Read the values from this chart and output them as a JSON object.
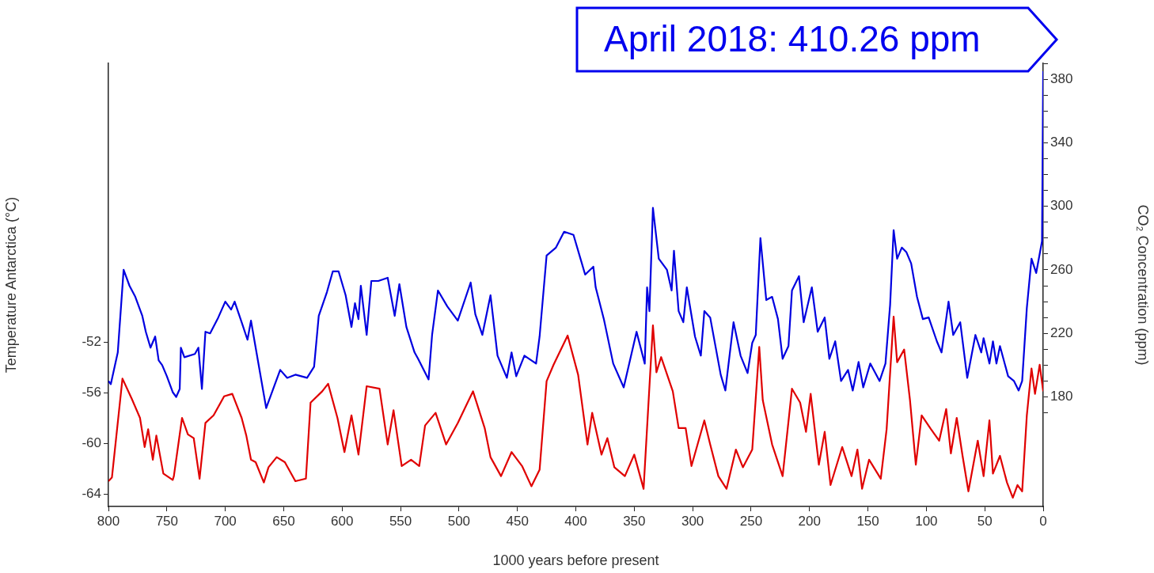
{
  "chart_data": {
    "type": "line",
    "xlabel": "1000 years before present",
    "ylabel": "Temperature Antarctica (°C)",
    "y2label": "CO₂ Concentration (ppm)",
    "annotations": [
      "April 2018: 410.26 ppm"
    ],
    "xlim": [
      800,
      0
    ],
    "xticks": [
      800,
      750,
      700,
      650,
      600,
      550,
      500,
      450,
      400,
      350,
      300,
      250,
      200,
      150,
      100,
      50,
      0
    ],
    "ylim": [
      -65,
      -30
    ],
    "yticks": [
      -64,
      -60,
      -56,
      -52
    ],
    "y2lim": [
      111,
      390
    ],
    "y2ticks": [
      {
        "value": 170,
        "label": null
      },
      180,
      {
        "value": 190,
        "label": null
      },
      {
        "value": 200,
        "label": null
      },
      {
        "value": 210,
        "label": null
      },
      220,
      {
        "value": 230,
        "label": null
      },
      {
        "value": 240,
        "label": null
      },
      {
        "value": 250,
        "label": null
      },
      260,
      {
        "value": 270,
        "label": null
      },
      {
        "value": 280,
        "label": null
      },
      {
        "value": 290,
        "label": null
      },
      300,
      {
        "value": 310,
        "label": null
      },
      {
        "value": 320,
        "label": null
      },
      {
        "value": 330,
        "label": null
      },
      340,
      {
        "value": 350,
        "label": null
      },
      {
        "value": 360,
        "label": null
      },
      {
        "value": 370,
        "label": null
      },
      380,
      {
        "value": 390,
        "label": null
      }
    ],
    "series": [
      {
        "color": "#0000e0",
        "axis": "y2",
        "x": [
          800,
          798,
          792,
          787,
          782,
          777,
          771,
          768,
          764,
          760,
          757,
          754,
          750,
          745,
          742,
          739,
          738,
          735,
          726,
          723,
          720,
          717,
          713,
          706,
          700,
          695,
          692,
          686,
          681,
          678,
          674,
          665,
          657,
          653,
          647,
          640,
          630,
          624,
          620,
          613,
          608,
          603,
          597,
          592,
          589,
          586,
          584,
          579,
          575,
          569,
          561,
          555,
          551,
          545,
          538,
          535,
          526,
          523,
          518,
          510,
          501,
          490,
          486,
          480,
          473,
          467,
          459,
          455,
          451,
          444,
          434,
          431,
          425,
          417,
          410,
          402,
          396,
          392,
          385,
          383,
          376,
          368,
          359,
          348,
          341,
          339,
          337,
          334,
          329,
          322,
          318,
          316,
          312,
          308,
          305,
          298,
          293,
          290,
          285,
          276,
          272,
          265,
          259,
          253,
          249,
          246,
          242,
          237,
          232,
          227,
          223,
          218,
          215,
          209,
          205,
          198,
          193,
          187,
          183,
          178,
          173,
          167,
          163,
          158,
          154,
          148,
          140,
          135,
          131,
          128,
          125,
          121,
          117,
          113,
          108,
          103,
          98,
          91,
          87,
          81,
          77,
          71,
          65,
          58,
          53,
          51,
          46,
          43,
          40,
          37,
          30,
          25,
          21,
          18,
          14,
          10,
          6,
          1,
          0
        ],
        "values": [
          190,
          188,
          208,
          260,
          250,
          243,
          231,
          221,
          211,
          218,
          203,
          200,
          193,
          183,
          180,
          185,
          211,
          205,
          207,
          211,
          185,
          221,
          220,
          230,
          240,
          235,
          240,
          227,
          216,
          228,
          211,
          173,
          189,
          197,
          192,
          194,
          192,
          199,
          231,
          246,
          259,
          259,
          244,
          224,
          239,
          229,
          250,
          219,
          253,
          253,
          255,
          231,
          251,
          224,
          208,
          204,
          191,
          219,
          247,
          237,
          228,
          252,
          232,
          219,
          244,
          206,
          192,
          208,
          193,
          206,
          201,
          218,
          269,
          274,
          284,
          282,
          267,
          257,
          262,
          249,
          229,
          201,
          186,
          221,
          201,
          249,
          234,
          299,
          267,
          260,
          247,
          272,
          234,
          227,
          249,
          218,
          206,
          234,
          230,
          194,
          184,
          227,
          206,
          195,
          214,
          219,
          280,
          241,
          243,
          229,
          204,
          212,
          247,
          256,
          227,
          249,
          221,
          230,
          204,
          215,
          190,
          197,
          184,
          202,
          186,
          201,
          190,
          201,
          238,
          285,
          267,
          274,
          271,
          264,
          243,
          229,
          230,
          215,
          208,
          240,
          219,
          227,
          192,
          219,
          208,
          217,
          201,
          215,
          201,
          212,
          193,
          190,
          184,
          190,
          236,
          267,
          258,
          278,
          385
        ]
      },
      {
        "color": "#e00000",
        "x": [
          800,
          797,
          788,
          780,
          773,
          769,
          766,
          762,
          759,
          753,
          745,
          744,
          737,
          732,
          727,
          722,
          717,
          710,
          701,
          694,
          686,
          682,
          678,
          674,
          667,
          663,
          656,
          649,
          640,
          631,
          627,
          617,
          612,
          604,
          598,
          592,
          586,
          579,
          568,
          561,
          556,
          549,
          541,
          534,
          529,
          520,
          511,
          501,
          488,
          478,
          473,
          464,
          455,
          446,
          438,
          431,
          425,
          419,
          407,
          398,
          390,
          386,
          378,
          373,
          367,
          358,
          350,
          342,
          334,
          331,
          327,
          317,
          312,
          306,
          301,
          290,
          285,
          278,
          271,
          263,
          257,
          249,
          243,
          240,
          232,
          223,
          215,
          208,
          203,
          199,
          192,
          187,
          182,
          172,
          164,
          159,
          155,
          149,
          139,
          134,
          128,
          125,
          119,
          114,
          109,
          104,
          96,
          89,
          83,
          79,
          74,
          69,
          64,
          56,
          51,
          46,
          43,
          37,
          31,
          26,
          22,
          18,
          14,
          10,
          7,
          3,
          0
        ],
        "values": [
          -63.0,
          -62.7,
          -54.9,
          -56.5,
          -58.0,
          -60.3,
          -58.9,
          -61.3,
          -59.4,
          -62.4,
          -62.9,
          -62.6,
          -58.0,
          -59.3,
          -59.6,
          -62.8,
          -58.4,
          -57.8,
          -56.3,
          -56.1,
          -58.0,
          -59.4,
          -61.3,
          -61.5,
          -63.1,
          -61.9,
          -61.1,
          -61.5,
          -63.0,
          -62.8,
          -56.8,
          -55.9,
          -55.3,
          -58.0,
          -60.7,
          -57.8,
          -60.9,
          -55.5,
          -55.7,
          -60.1,
          -57.4,
          -61.8,
          -61.3,
          -61.8,
          -58.6,
          -57.6,
          -60.1,
          -58.4,
          -55.9,
          -58.8,
          -61.1,
          -62.6,
          -60.7,
          -61.8,
          -63.4,
          -62.1,
          -55.1,
          -53.8,
          -51.5,
          -54.6,
          -60.1,
          -57.6,
          -60.9,
          -59.6,
          -61.9,
          -62.6,
          -60.9,
          -63.6,
          -50.7,
          -54.4,
          -53.2,
          -55.9,
          -58.8,
          -58.8,
          -61.8,
          -58.2,
          -60.1,
          -62.6,
          -63.6,
          -60.5,
          -61.9,
          -60.5,
          -52.4,
          -56.6,
          -60.1,
          -62.6,
          -55.7,
          -56.8,
          -59.1,
          -56.1,
          -61.7,
          -59.1,
          -63.3,
          -60.3,
          -62.6,
          -60.5,
          -63.6,
          -61.3,
          -62.8,
          -58.9,
          -50.0,
          -53.6,
          -52.6,
          -56.6,
          -61.7,
          -57.8,
          -58.9,
          -59.8,
          -57.3,
          -60.8,
          -58.0,
          -61.0,
          -63.8,
          -59.8,
          -62.6,
          -58.2,
          -62.4,
          -61.0,
          -63.1,
          -64.3,
          -63.3,
          -63.8,
          -57.8,
          -54.1,
          -56.1,
          -53.8,
          -55.9
        ]
      }
    ]
  }
}
